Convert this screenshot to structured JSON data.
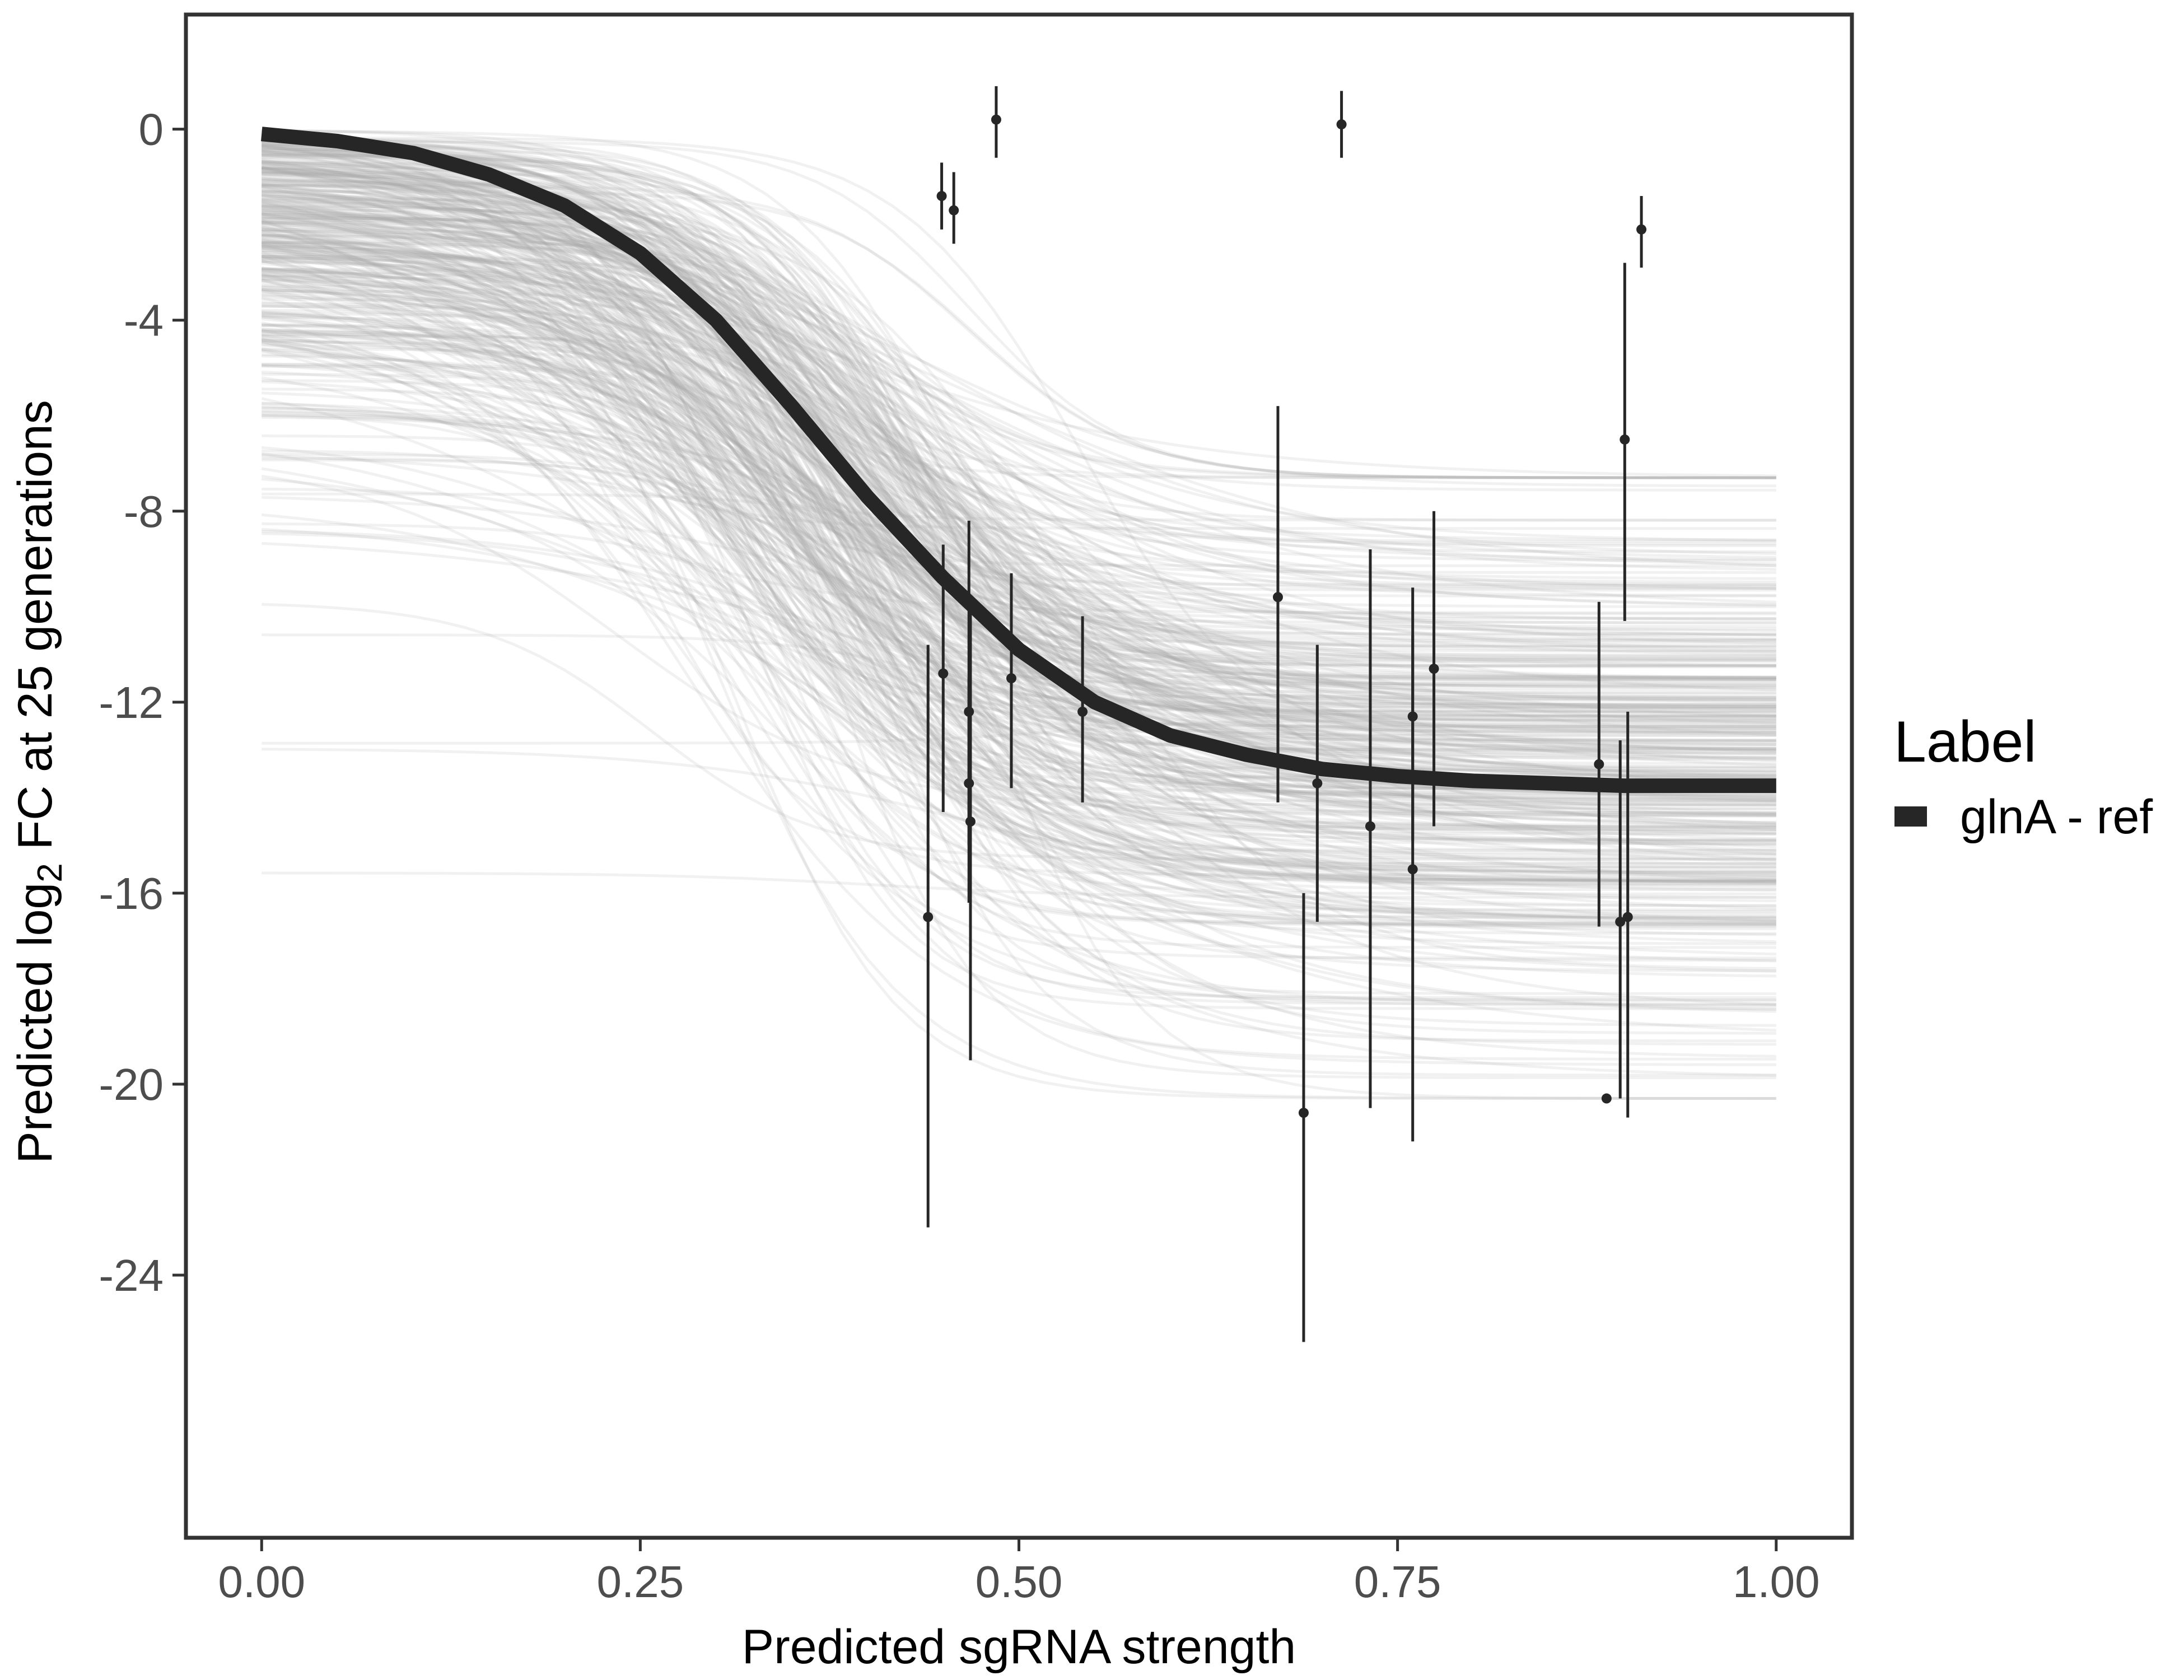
{
  "chart_data": {
    "type": "line",
    "title": "",
    "xlabel": "Predicted sgRNA strength",
    "ylabel_parts": [
      "Predicted  log",
      "2",
      " FC at 25 generations"
    ],
    "xlim": [
      -0.05,
      1.05
    ],
    "ylim": [
      -29.5,
      2.4
    ],
    "x_ticks": [
      0.0,
      0.25,
      0.5,
      0.75,
      1.0
    ],
    "x_tick_labels": [
      "0.00",
      "0.25",
      "0.50",
      "0.75",
      "1.00"
    ],
    "y_ticks": [
      0,
      -4,
      -8,
      -12,
      -16,
      -20,
      -24
    ],
    "y_tick_labels": [
      "0",
      "-4",
      "-8",
      "-12",
      "-16",
      "-20",
      "-24"
    ],
    "grid": false,
    "legend": {
      "title": "Label",
      "position": "right",
      "entries": [
        "glnA - ref"
      ]
    },
    "series": [
      {
        "name": "glnA - ref",
        "kind": "fitted_curve",
        "color": "#262626",
        "x": [
          0.0,
          0.05,
          0.1,
          0.15,
          0.2,
          0.25,
          0.3,
          0.35,
          0.4,
          0.45,
          0.5,
          0.55,
          0.6,
          0.65,
          0.7,
          0.75,
          0.8,
          0.85,
          0.9,
          0.95,
          1.0
        ],
        "y": [
          -0.1,
          -0.25,
          -0.5,
          -0.95,
          -1.6,
          -2.6,
          -4.0,
          -5.8,
          -7.7,
          -9.4,
          -10.9,
          -12.0,
          -12.7,
          -13.1,
          -13.4,
          -13.55,
          -13.65,
          -13.7,
          -13.75,
          -13.75,
          -13.75
        ]
      },
      {
        "name": "",
        "kind": "posterior_draws",
        "color": "#a6a6a6",
        "draws": 400,
        "note_params_visible_only": true
      },
      {
        "name": "",
        "kind": "observed_points",
        "color": "#262626",
        "points": [
          {
            "x": 0.44,
            "y": -16.5,
            "lo": -23.0,
            "hi": -10.8
          },
          {
            "x": 0.449,
            "y": -1.4,
            "lo": -2.1,
            "hi": -0.7
          },
          {
            "x": 0.45,
            "y": -11.4,
            "lo": -14.3,
            "hi": -8.7
          },
          {
            "x": 0.457,
            "y": -1.7,
            "lo": -2.4,
            "hi": -0.9
          },
          {
            "x": 0.467,
            "y": -12.2,
            "lo": -15.0,
            "hi": -8.2
          },
          {
            "x": 0.467,
            "y": -13.7,
            "lo": -16.2,
            "hi": -11.5
          },
          {
            "x": 0.468,
            "y": -14.5,
            "lo": -19.5,
            "hi": -10.0
          },
          {
            "x": 0.485,
            "y": 0.2,
            "lo": -0.6,
            "hi": 0.9
          },
          {
            "x": 0.495,
            "y": -11.5,
            "lo": -13.8,
            "hi": -9.3
          },
          {
            "x": 0.542,
            "y": -12.2,
            "lo": -14.1,
            "hi": -10.2
          },
          {
            "x": 0.671,
            "y": -9.8,
            "lo": -14.1,
            "hi": -5.8
          },
          {
            "x": 0.688,
            "y": -20.6,
            "lo": -25.4,
            "hi": -16.0
          },
          {
            "x": 0.697,
            "y": -13.7,
            "lo": -16.6,
            "hi": -10.8
          },
          {
            "x": 0.713,
            "y": 0.1,
            "lo": -0.6,
            "hi": 0.8
          },
          {
            "x": 0.732,
            "y": -14.6,
            "lo": -20.5,
            "hi": -8.8
          },
          {
            "x": 0.76,
            "y": -12.3,
            "lo": -14.9,
            "hi": -9.6
          },
          {
            "x": 0.76,
            "y": -15.5,
            "lo": -21.2,
            "hi": -10.6
          },
          {
            "x": 0.774,
            "y": -11.3,
            "lo": -14.6,
            "hi": -8.0
          },
          {
            "x": 0.883,
            "y": -13.3,
            "lo": -16.7,
            "hi": -9.9
          },
          {
            "x": 0.888,
            "y": -20.3,
            "lo": -20.3,
            "hi": -20.3
          },
          {
            "x": 0.897,
            "y": -16.6,
            "lo": -20.3,
            "hi": -12.8
          },
          {
            "x": 0.9,
            "y": -6.5,
            "lo": -10.3,
            "hi": -2.8
          },
          {
            "x": 0.902,
            "y": -16.5,
            "lo": -20.7,
            "hi": -12.2
          },
          {
            "x": 0.911,
            "y": -2.1,
            "lo": -2.9,
            "hi": -1.4
          }
        ]
      }
    ]
  }
}
